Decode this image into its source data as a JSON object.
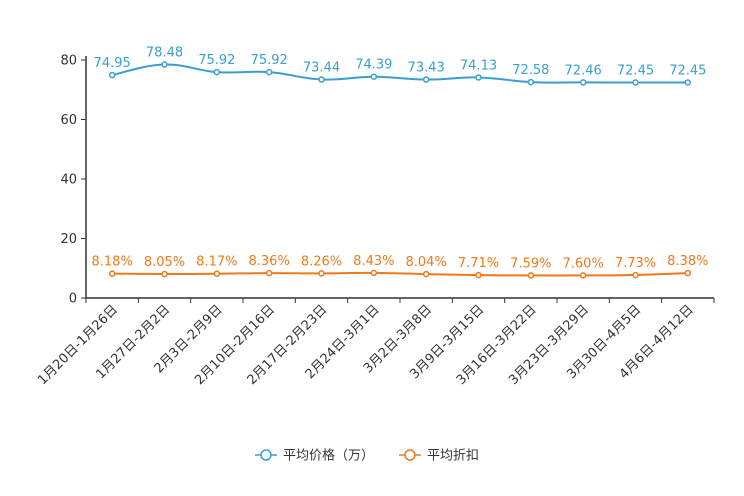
{
  "chart_data": {
    "type": "line",
    "title": "",
    "xlabel": "",
    "ylabel": "",
    "ylim": [
      0,
      80
    ],
    "yticks": [
      0,
      20,
      40,
      60,
      80
    ],
    "grid": false,
    "legend_position": "bottom-center",
    "categories": [
      "1月20日-1月26日",
      "1月27日-2月2日",
      "2月3日-2月9日",
      "2月10日-2月16日",
      "2月17日-2月23日",
      "2月24日-3月1日",
      "3月2日-3月8日",
      "3月9日-3月15日",
      "3月16日-3月22日",
      "3月23日-3月29日",
      "3月30日-4月5日",
      "4月6日-4月12日"
    ],
    "series": [
      {
        "name": "平均价格（万）",
        "color": "#3a9fd0",
        "values": [
          74.95,
          78.48,
          75.92,
          75.92,
          73.44,
          74.39,
          73.43,
          74.13,
          72.58,
          72.46,
          72.45,
          72.45
        ],
        "labels": [
          "74.95",
          "78.48",
          "75.92",
          "75.92",
          "73.44",
          "74.39",
          "73.43",
          "74.13",
          "72.58",
          "72.46",
          "72.45",
          "72.45"
        ]
      },
      {
        "name": "平均折扣",
        "color": "#f07a1a",
        "values": [
          8.18,
          8.05,
          8.17,
          8.36,
          8.26,
          8.43,
          8.04,
          7.71,
          7.59,
          7.6,
          7.73,
          8.38
        ],
        "labels": [
          "8.18%",
          "8.05%",
          "8.17%",
          "8.36%",
          "8.26%",
          "8.43%",
          "8.04%",
          "7.71%",
          "7.59%",
          "7.60%",
          "7.73%",
          "8.38%"
        ]
      }
    ]
  }
}
